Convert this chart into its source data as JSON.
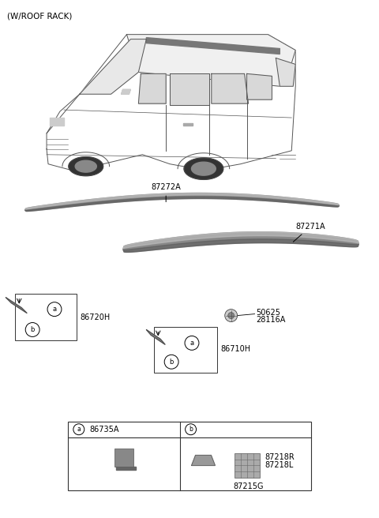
{
  "title": "(W/ROOF RACK)",
  "bg_color": "#ffffff",
  "text_color": "#000000",
  "gray1": "#666666",
  "gray2": "#888888",
  "gray3": "#aaaaaa",
  "gray_dark": "#444444",
  "figsize": [
    4.8,
    6.56
  ],
  "dpi": 100,
  "rail1_label": "87272A",
  "rail2_label": "87271A",
  "box1_label": "86720H",
  "box2_label": "86710H",
  "screw_label1": "50625",
  "screw_label2": "28116A",
  "legend_a_label": "86735A",
  "legend_b1": "87218R",
  "legend_b2": "87218L",
  "legend_b3": "87215G"
}
